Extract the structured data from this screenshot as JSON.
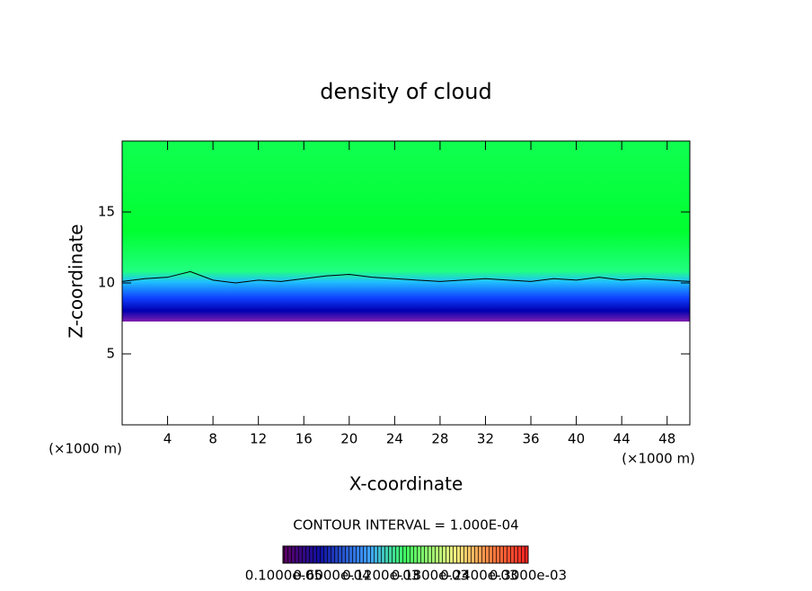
{
  "chart_data": {
    "type": "contour",
    "title": "density of cloud",
    "x_label": "X-coordinate",
    "y_label": "Z-coordinate",
    "x_unit": "(×1000 m)",
    "y_unit": "(×1000 m)",
    "xlim": [
      0,
      50
    ],
    "ylim": [
      0,
      20
    ],
    "xticks": [
      4,
      8,
      12,
      16,
      20,
      24,
      28,
      32,
      36,
      40,
      44,
      48
    ],
    "yticks": [
      5,
      10,
      15
    ],
    "contour_interval_label": "CONTOUR INTERVAL = 1.000E-04",
    "clim": [
      0,
      0.0003
    ],
    "colorbar_ticks": [
      {
        "value": 1e-06,
        "label": "0.1000e-05"
      },
      {
        "value": 6e-05,
        "label": "0.6000e-04"
      },
      {
        "value": 0.00012,
        "label": "0.1200e-03"
      },
      {
        "value": 0.00018,
        "label": "0.1800e-03"
      },
      {
        "value": 0.00024,
        "label": "0.2400e-03"
      },
      {
        "value": 0.0003,
        "label": "0.3000e-03"
      }
    ],
    "contour": {
      "color": "#000000",
      "x": [
        0,
        2,
        4,
        6,
        8,
        10,
        12,
        14,
        16,
        18,
        20,
        22,
        24,
        26,
        28,
        30,
        32,
        34,
        36,
        38,
        40,
        42,
        44,
        46,
        48,
        50
      ],
      "values": [
        10.1,
        10.3,
        10.4,
        10.8,
        10.2,
        10.0,
        10.2,
        10.1,
        10.3,
        10.5,
        10.6,
        10.4,
        10.3,
        10.2,
        10.1,
        10.2,
        10.3,
        10.2,
        10.1,
        10.3,
        10.2,
        10.4,
        10.2,
        10.3,
        10.2,
        10.1
      ]
    }
  }
}
